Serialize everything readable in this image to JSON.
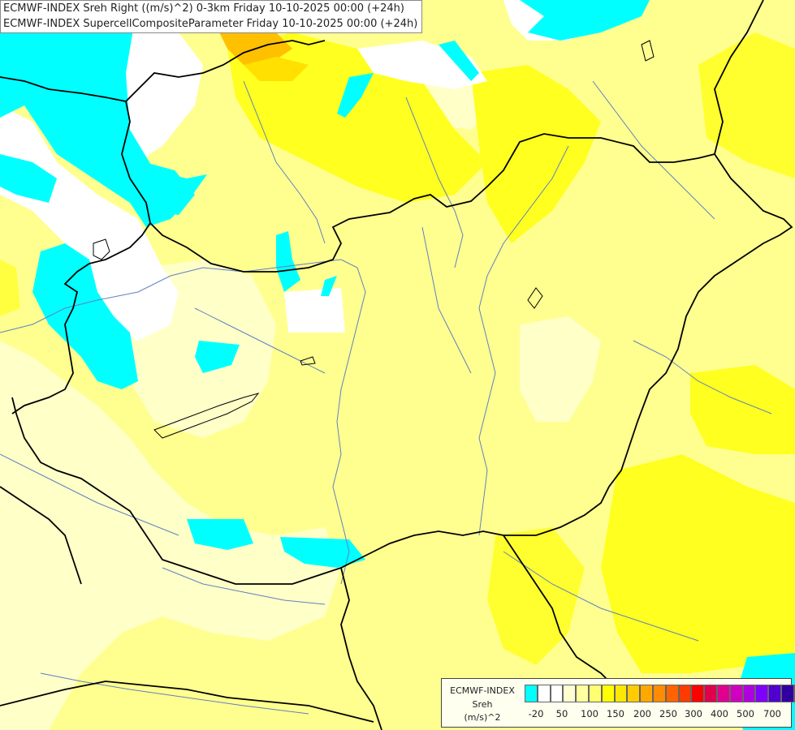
{
  "header": {
    "line1": "ECMWF-INDEX Sreh Right ((m/s)^2) 0-3km Friday 10-10-2025 00:00 (+24h)",
    "line2": "ECMWF-INDEX SupercellCompositeParameter Friday 10-10-2025 00:00 (+24h)"
  },
  "legend": {
    "title1": "ECMWF-INDEX",
    "title2": "Sreh",
    "unit": "(m/s)^2",
    "colors": [
      "#00ffff",
      "#ffffff",
      "#ffffff",
      "#ffffd0",
      "#ffffa0",
      "#ffff70",
      "#ffff00",
      "#ffe800",
      "#ffcc00",
      "#ffa800",
      "#ff8c00",
      "#ff6400",
      "#ff3c00",
      "#ff0000",
      "#e0004c",
      "#e00090",
      "#d000c0",
      "#b000e0",
      "#8000ff",
      "#5000d0",
      "#3000a0",
      "#000080"
    ],
    "ticks": [
      "-20",
      "50",
      "100",
      "150",
      "200",
      "250",
      "300",
      "400",
      "500",
      "700"
    ]
  },
  "map": {
    "colors": {
      "cyan": "#00ffff",
      "white": "#ffffff",
      "pale": "#ffffd0",
      "light": "#ffffa0",
      "mid": "#ffff70",
      "yellow": "#ffff00",
      "gold": "#ffcc00",
      "orange": "#ffa800",
      "border": "#000000",
      "river": "#6080c0"
    }
  }
}
